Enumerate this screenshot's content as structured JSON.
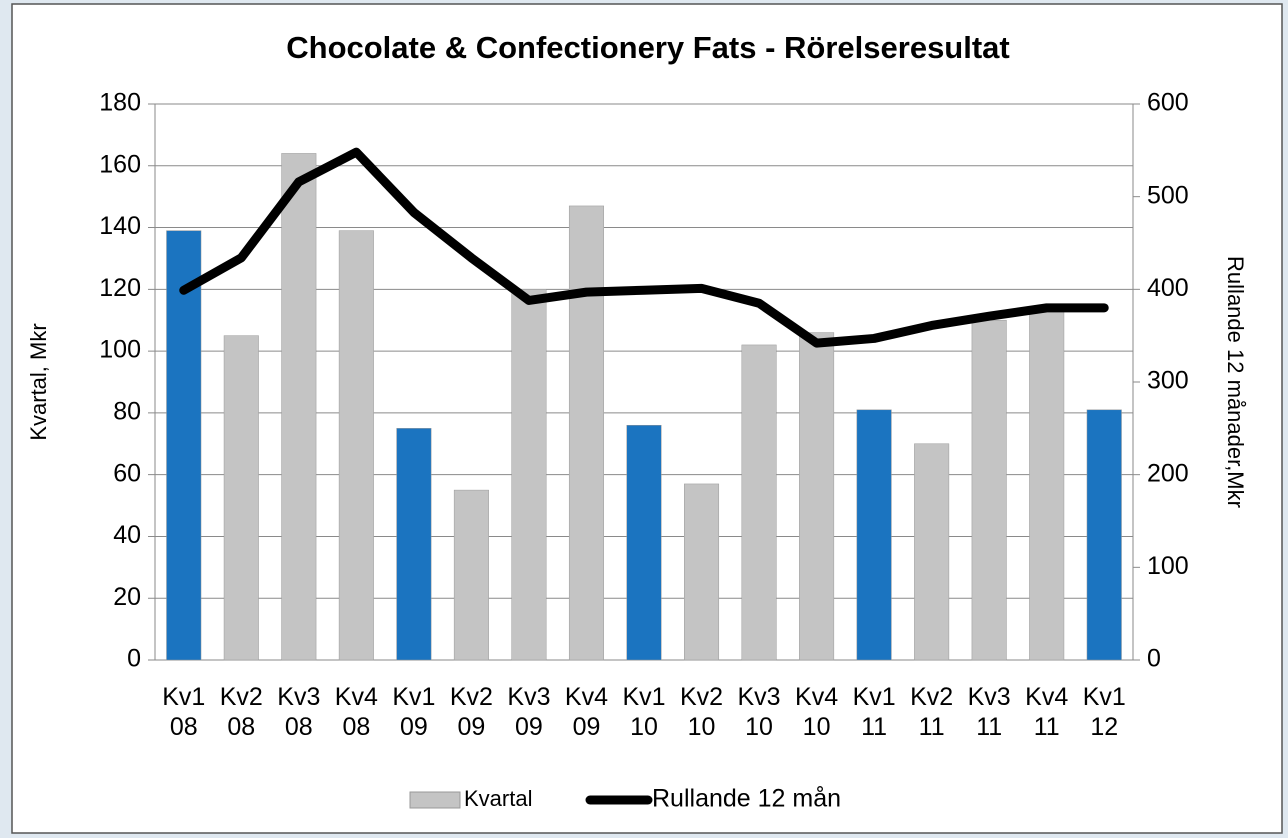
{
  "chart_data": {
    "type": "bar",
    "title": "Chocolate & Confectionery Fats - Rörelseresultat",
    "y_label": "Kvartal, Mkr",
    "y2_label": "Rullande 12 månader,Mkr",
    "categories": [
      "Kv1 08",
      "Kv2 08",
      "Kv3 08",
      "Kv4 08",
      "Kv1 09",
      "Kv2 09",
      "Kv3 09",
      "Kv4 09",
      "Kv1 10",
      "Kv2 10",
      "Kv3 10",
      "Kv4 10",
      "Kv1 11",
      "Kv2 11",
      "Kv3 11",
      "Kv4 11",
      "Kv1 12"
    ],
    "series": [
      {
        "name": "Kvartal",
        "type": "bar",
        "color": "#c4c4c4",
        "point_colors": [
          "#1b74c0",
          "#c4c4c4",
          "#c4c4c4",
          "#c4c4c4",
          "#1b74c0",
          "#c4c4c4",
          "#c4c4c4",
          "#c4c4c4",
          "#1b74c0",
          "#c4c4c4",
          "#c4c4c4",
          "#c4c4c4",
          "#1b74c0",
          "#c4c4c4",
          "#c4c4c4",
          "#c4c4c4",
          "#1b74c0"
        ],
        "values": [
          139,
          105,
          164,
          139,
          75,
          55,
          120,
          147,
          76,
          57,
          102,
          106,
          81,
          70,
          110,
          113,
          81
        ]
      },
      {
        "name": "Rullande 12 mån",
        "type": "line",
        "axis": "y2",
        "color": "#000000",
        "values": [
          399,
          434,
          516,
          548,
          483,
          434,
          388,
          397,
          399,
          401,
          385,
          342,
          347,
          361,
          371,
          380,
          380
        ]
      }
    ],
    "ylim": [
      0,
      180
    ],
    "yticks": [
      0,
      20,
      40,
      60,
      80,
      100,
      120,
      140,
      160,
      180
    ],
    "y2lim": [
      0,
      600
    ],
    "y2ticks": [
      0,
      100,
      200,
      300,
      400,
      500,
      600
    ],
    "grid": true,
    "legend": "bottom"
  }
}
